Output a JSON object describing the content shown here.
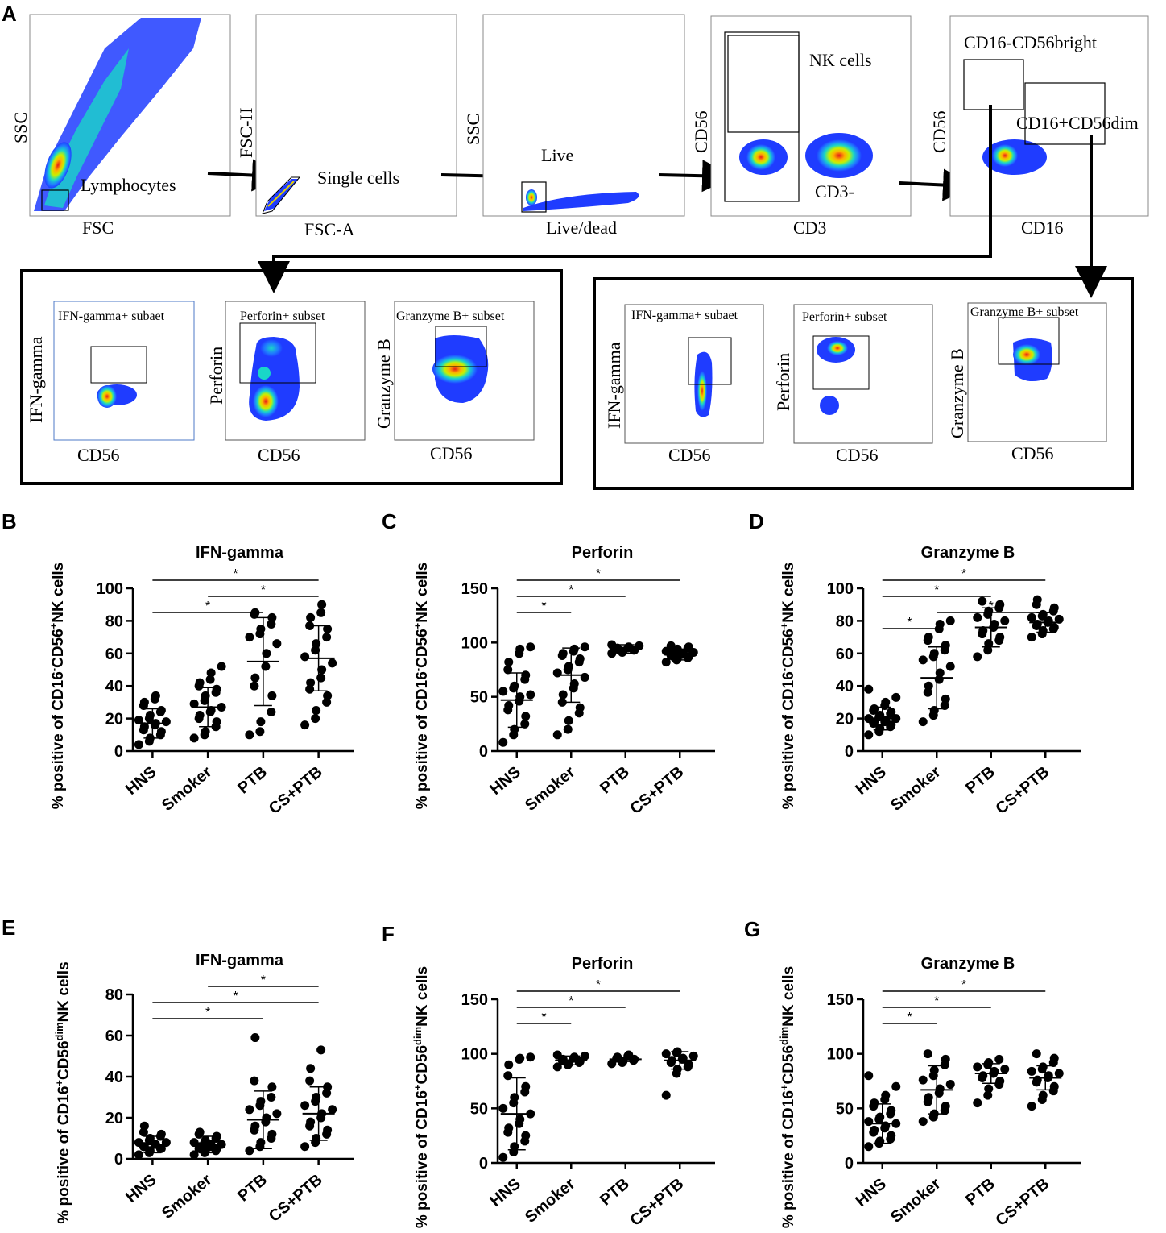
{
  "figure": {
    "panel_letters": [
      "A",
      "B",
      "C",
      "D",
      "E",
      "F",
      "G"
    ],
    "flow": {
      "plots": [
        {
          "ylabel": "SSC",
          "xlabel": "FSC",
          "gate": "Lymphocytes"
        },
        {
          "ylabel": "FSC-H",
          "xlabel": "FSC-A",
          "gate": "Single cells"
        },
        {
          "ylabel": "SSC",
          "xlabel": "Live/dead",
          "gate": "Live"
        },
        {
          "ylabel": "CD56",
          "xlabel": "CD3",
          "gate": "NK cells",
          "gate2": "CD3-"
        },
        {
          "ylabel": "CD56",
          "xlabel": "CD16",
          "gate": "CD16-CD56bright",
          "gate2": "CD16+CD56dim"
        }
      ],
      "sub_left": [
        {
          "title": "IFN-gamma+ subaet",
          "ylabel": "IFN-gamma",
          "xlabel": "CD56"
        },
        {
          "title": "Perforin+ subset",
          "ylabel": "Perforin",
          "xlabel": "CD56"
        },
        {
          "title": "Granzyme B+ subset",
          "ylabel": "Granzyme B",
          "xlabel": "CD56"
        }
      ],
      "sub_right": [
        {
          "title": "IFN-gamma+ subaet",
          "ylabel": "IFN-gamma",
          "xlabel": "CD56"
        },
        {
          "title": "Perforin+ subset",
          "ylabel": "Perforin",
          "xlabel": "CD56"
        },
        {
          "title": "Granzyme B+ subset",
          "ylabel": "Granzyme B",
          "xlabel": "CD56"
        }
      ]
    },
    "colors": {
      "dot": "#000000",
      "density_low": "#1f3cff",
      "density_mid": "#19d6c8",
      "density_high": "#ffe400",
      "density_peak": "#e51b1b"
    }
  },
  "chart_data": [
    {
      "panel": "B",
      "type": "scatter",
      "title": "IFN-gamma",
      "ylabel_pre": "% positive of CD16",
      "ylabel_mid": "CD56",
      "ylabel_post": "NK cells",
      "sup1": "-",
      "sup2": "+",
      "categories": [
        "HNS",
        "Smoker",
        "PTB",
        "CS+PTB"
      ],
      "ylim": [
        0,
        100
      ],
      "yticks": [
        0,
        20,
        40,
        60,
        80,
        100
      ],
      "points": [
        [
          4,
          6,
          8,
          10,
          12,
          13,
          15,
          16,
          17,
          18,
          19,
          20,
          22,
          24,
          25,
          28,
          30,
          32,
          34
        ],
        [
          8,
          10,
          12,
          15,
          18,
          20,
          22,
          24,
          25,
          27,
          29,
          31,
          34,
          36,
          38,
          40,
          42,
          44,
          48,
          52
        ],
        [
          10,
          12,
          18,
          24,
          34,
          40,
          45,
          52,
          60,
          66,
          70,
          72,
          75,
          78,
          82,
          84,
          85
        ],
        [
          16,
          20,
          25,
          30,
          34,
          38,
          42,
          45,
          50,
          54,
          58,
          62,
          66,
          70,
          75,
          77,
          82,
          85,
          90
        ]
      ],
      "means": [
        17,
        27,
        55,
        57
      ],
      "sd": [
        9,
        12,
        27,
        20
      ],
      "sig": [
        {
          "a": 0,
          "b": 3,
          "level": 1,
          "label": "*"
        },
        {
          "a": 0,
          "b": 2,
          "level": 3,
          "label": "*"
        },
        {
          "a": 1,
          "b": 3,
          "level": 2,
          "label": "*"
        }
      ]
    },
    {
      "panel": "C",
      "type": "scatter",
      "title": "Perforin",
      "ylabel_pre": "% positive of CD16",
      "ylabel_mid": "CD56",
      "ylabel_post": "NK cells",
      "sup1": "-",
      "sup2": "+",
      "categories": [
        "HNS",
        "Smoker",
        "PTB",
        "CS+PTB"
      ],
      "ylim": [
        0,
        150
      ],
      "yticks": [
        0,
        50,
        100,
        150
      ],
      "points": [
        [
          8,
          15,
          20,
          25,
          32,
          38,
          42,
          46,
          50,
          52,
          55,
          58,
          60,
          66,
          70,
          75,
          82,
          90,
          94,
          96
        ],
        [
          15,
          20,
          28,
          35,
          40,
          45,
          52,
          58,
          62,
          68,
          72,
          75,
          78,
          82,
          85,
          88,
          90,
          92,
          94,
          96
        ],
        [
          90,
          91,
          92,
          93,
          94,
          95,
          96,
          97,
          98,
          93,
          95
        ],
        [
          82,
          84,
          86,
          87,
          88,
          89,
          90,
          91,
          92,
          93,
          94,
          95,
          96,
          97,
          85,
          89
        ]
      ],
      "means": [
        47,
        70,
        94,
        89
      ],
      "sd": [
        25,
        25,
        4,
        5
      ],
      "sig": [
        {
          "a": 0,
          "b": 3,
          "level": 1,
          "label": "*"
        },
        {
          "a": 0,
          "b": 2,
          "level": 2,
          "label": "*"
        },
        {
          "a": 0,
          "b": 1,
          "level": 3,
          "label": "*"
        }
      ]
    },
    {
      "panel": "D",
      "type": "scatter",
      "title": "Granzyme B",
      "ylabel_pre": "% positive of CD16",
      "ylabel_mid": "CD56",
      "ylabel_post": "NK cells",
      "sup1": "-",
      "sup2": "+",
      "categories": [
        "HNS",
        "Smoker",
        "PTB",
        "CS+PTB"
      ],
      "ylim": [
        0,
        100
      ],
      "yticks": [
        0,
        20,
        40,
        60,
        80,
        100
      ],
      "points": [
        [
          10,
          12,
          14,
          15,
          16,
          17,
          18,
          18,
          19,
          20,
          20,
          21,
          22,
          23,
          24,
          25,
          26,
          28,
          30,
          33,
          38
        ],
        [
          18,
          22,
          25,
          28,
          32,
          36,
          40,
          44,
          48,
          52,
          56,
          58,
          60,
          62,
          65,
          68,
          70,
          75,
          78,
          80
        ],
        [
          58,
          62,
          66,
          68,
          70,
          72,
          74,
          76,
          78,
          80,
          82,
          84,
          86,
          88,
          90,
          92
        ],
        [
          70,
          72,
          74,
          75,
          76,
          77,
          78,
          79,
          80,
          81,
          82,
          83,
          84,
          86,
          88,
          90,
          93
        ]
      ],
      "means": [
        20,
        45,
        76,
        79
      ],
      "sd": [
        7,
        19,
        12,
        6
      ],
      "sig": [
        {
          "a": 0,
          "b": 3,
          "level": 1,
          "label": "*"
        },
        {
          "a": 0,
          "b": 2,
          "level": 2,
          "label": "*"
        },
        {
          "a": 1,
          "b": 3,
          "level": 3,
          "label": "*"
        },
        {
          "a": 0,
          "b": 1,
          "level": 4,
          "label": "*"
        }
      ]
    },
    {
      "panel": "E",
      "type": "scatter",
      "title": "IFN-gamma",
      "ylabel_pre": "% positive of CD16",
      "ylabel_mid": "CD56",
      "ylabel_post": "NK cells",
      "sup1": "+",
      "sup2": "dim",
      "categories": [
        "HNS",
        "Smoker",
        "PTB",
        "CS+PTB"
      ],
      "ylim": [
        0,
        80
      ],
      "yticks": [
        0,
        20,
        40,
        60,
        80
      ],
      "points": [
        [
          2,
          3,
          4,
          5,
          5,
          6,
          6,
          7,
          7,
          8,
          8,
          9,
          10,
          11,
          12,
          13,
          16
        ],
        [
          2,
          3,
          4,
          4,
          5,
          5,
          6,
          6,
          7,
          7,
          8,
          8,
          9,
          10,
          11,
          12,
          13
        ],
        [
          4,
          6,
          8,
          10,
          12,
          14,
          16,
          18,
          20,
          22,
          24,
          26,
          28,
          30,
          35,
          38,
          59
        ],
        [
          6,
          8,
          10,
          12,
          14,
          16,
          18,
          20,
          22,
          24,
          26,
          28,
          30,
          32,
          35,
          38,
          44,
          53
        ]
      ],
      "means": [
        7,
        7,
        19,
        22
      ],
      "sd": [
        4,
        4,
        14,
        13
      ],
      "sig": [
        {
          "a": 1,
          "b": 3,
          "level": 1,
          "label": "*"
        },
        {
          "a": 0,
          "b": 3,
          "level": 2,
          "label": "*"
        },
        {
          "a": 0,
          "b": 2,
          "level": 3,
          "label": "*"
        }
      ]
    },
    {
      "panel": "F",
      "type": "scatter",
      "title": "Perforin",
      "ylabel_pre": "% positive of CD16",
      "ylabel_mid": "CD56",
      "ylabel_post": "NK cells",
      "sup1": "+",
      "sup2": "dim",
      "categories": [
        "HNS",
        "Smoker",
        "PTB",
        "CS+PTB"
      ],
      "ylim": [
        0,
        150
      ],
      "yticks": [
        0,
        50,
        100,
        150
      ],
      "points": [
        [
          5,
          10,
          15,
          20,
          25,
          28,
          32,
          36,
          40,
          45,
          50,
          55,
          60,
          65,
          70,
          80,
          90,
          95,
          96,
          97
        ],
        [
          88,
          90,
          91,
          92,
          93,
          94,
          95,
          96,
          97,
          98,
          99
        ],
        [
          91,
          92,
          93,
          94,
          95,
          96,
          97,
          98,
          99
        ],
        [
          62,
          82,
          86,
          88,
          90,
          92,
          94,
          95,
          96,
          98,
          100,
          101,
          102
        ]
      ],
      "means": [
        45,
        94,
        95,
        94
      ],
      "sd": [
        33,
        4,
        2,
        8
      ],
      "sig": [
        {
          "a": 0,
          "b": 3,
          "level": 1,
          "label": "*"
        },
        {
          "a": 0,
          "b": 2,
          "level": 2,
          "label": "*"
        },
        {
          "a": 0,
          "b": 1,
          "level": 3,
          "label": "*"
        }
      ]
    },
    {
      "panel": "G",
      "type": "scatter",
      "title": "Granzyme B",
      "ylabel_pre": "% positive of CD16",
      "ylabel_mid": "CD56",
      "ylabel_post": "NK cells",
      "sup1": "+",
      "sup2": "dim",
      "categories": [
        "HNS",
        "Smoker",
        "PTB",
        "CS+PTB"
      ],
      "ylim": [
        0,
        150
      ],
      "yticks": [
        0,
        50,
        100,
        150
      ],
      "points": [
        [
          15,
          18,
          20,
          22,
          25,
          28,
          30,
          32,
          34,
          36,
          38,
          40,
          42,
          45,
          48,
          52,
          55,
          58,
          62,
          70,
          80
        ],
        [
          38,
          42,
          45,
          48,
          52,
          56,
          60,
          64,
          68,
          72,
          76,
          80,
          85,
          90,
          95,
          100
        ],
        [
          55,
          62,
          68,
          72,
          75,
          78,
          80,
          82,
          84,
          86,
          88,
          90,
          92,
          95
        ],
        [
          52,
          58,
          62,
          66,
          70,
          74,
          76,
          78,
          80,
          82,
          84,
          86,
          88,
          92,
          96,
          100
        ]
      ],
      "means": [
        36,
        67,
        82,
        78
      ],
      "sd": [
        18,
        22,
        9,
        11
      ],
      "sig": [
        {
          "a": 0,
          "b": 3,
          "level": 1,
          "label": "*"
        },
        {
          "a": 0,
          "b": 2,
          "level": 2,
          "label": "*"
        },
        {
          "a": 0,
          "b": 1,
          "level": 3,
          "label": "*"
        }
      ]
    }
  ]
}
